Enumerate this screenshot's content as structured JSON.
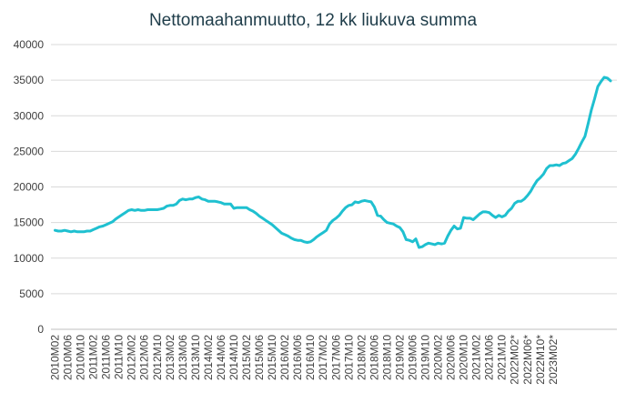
{
  "chart_data": {
    "type": "line",
    "title": "Nettomaahanmuutto, 12 kk liukuva summa",
    "xlabel": "",
    "ylabel": "",
    "ylim": [
      0,
      40000
    ],
    "yticks": [
      0,
      5000,
      10000,
      15000,
      20000,
      25000,
      30000,
      35000,
      40000
    ],
    "grid": true,
    "line_color": "#1fc0d0",
    "x_tick_labels": [
      "2010M02",
      "2010M06",
      "2010M10",
      "2011M02",
      "2011M06",
      "2011M10",
      "2012M02",
      "2012M06",
      "2012M10",
      "2013M02",
      "2013M06",
      "2013M10",
      "2014M02",
      "2014M06",
      "2014M10",
      "2015M02",
      "2015M06",
      "2015M10",
      "2016M02",
      "2016M06",
      "2016M10",
      "2017M02",
      "2017M06",
      "2017M10",
      "2018M02",
      "2018M06",
      "2018M10",
      "2019M02",
      "2019M06",
      "2019M10",
      "2020M02",
      "2020M06",
      "2020M10",
      "2021M02",
      "2021M06",
      "2021M10",
      "2022M02*",
      "2022M06*",
      "2022M10*",
      "2023M02*"
    ],
    "x_start": "2010M02",
    "x_end": "2023M03*",
    "series": [
      {
        "values": [
          13900,
          13800,
          13800,
          13900,
          13800,
          13700,
          13800,
          13700,
          13700,
          13700,
          13800,
          13800,
          14000,
          14200,
          14400,
          14500,
          14700,
          14900,
          15100,
          15500,
          15800,
          16100,
          16400,
          16700,
          16800,
          16700,
          16800,
          16700,
          16700,
          16800,
          16800,
          16800,
          16800,
          16900,
          17000,
          17300,
          17400,
          17400,
          17600,
          18100,
          18300,
          18200,
          18300,
          18300,
          18500,
          18600,
          18300,
          18200,
          18000,
          18000,
          18000,
          17900,
          17800,
          17600,
          17600,
          17600,
          17000,
          17100,
          17100,
          17100,
          17100,
          16800,
          16600,
          16300,
          15900,
          15600,
          15300,
          15000,
          14700,
          14300,
          13900,
          13500,
          13300,
          13100,
          12800,
          12600,
          12500,
          12500,
          12300,
          12200,
          12300,
          12600,
          13000,
          13300,
          13600,
          13900,
          14800,
          15300,
          15600,
          16000,
          16600,
          17100,
          17400,
          17500,
          17900,
          17800,
          18000,
          18100,
          18000,
          17900,
          17200,
          16000,
          15900,
          15400,
          15000,
          14900,
          14800,
          14500,
          14300,
          13700,
          12600,
          12500,
          12300,
          12700,
          11500,
          11600,
          11900,
          12100,
          12000,
          11900,
          12100,
          12000,
          12100,
          13100,
          13900,
          14500,
          14100,
          14200,
          15700,
          15600,
          15600,
          15400,
          15800,
          16200,
          16500,
          16500,
          16400,
          16000,
          15700,
          16000,
          15800,
          16000,
          16600,
          17000,
          17700,
          18000,
          18000,
          18300,
          18800,
          19400,
          20200,
          20900,
          21300,
          21800,
          22600,
          23000,
          23000,
          23100,
          23000,
          23300,
          23400,
          23700,
          24000,
          24600,
          25400,
          26300,
          27100,
          28900,
          30800,
          32400,
          34100,
          34800,
          35400,
          35300,
          34900
        ]
      }
    ]
  }
}
